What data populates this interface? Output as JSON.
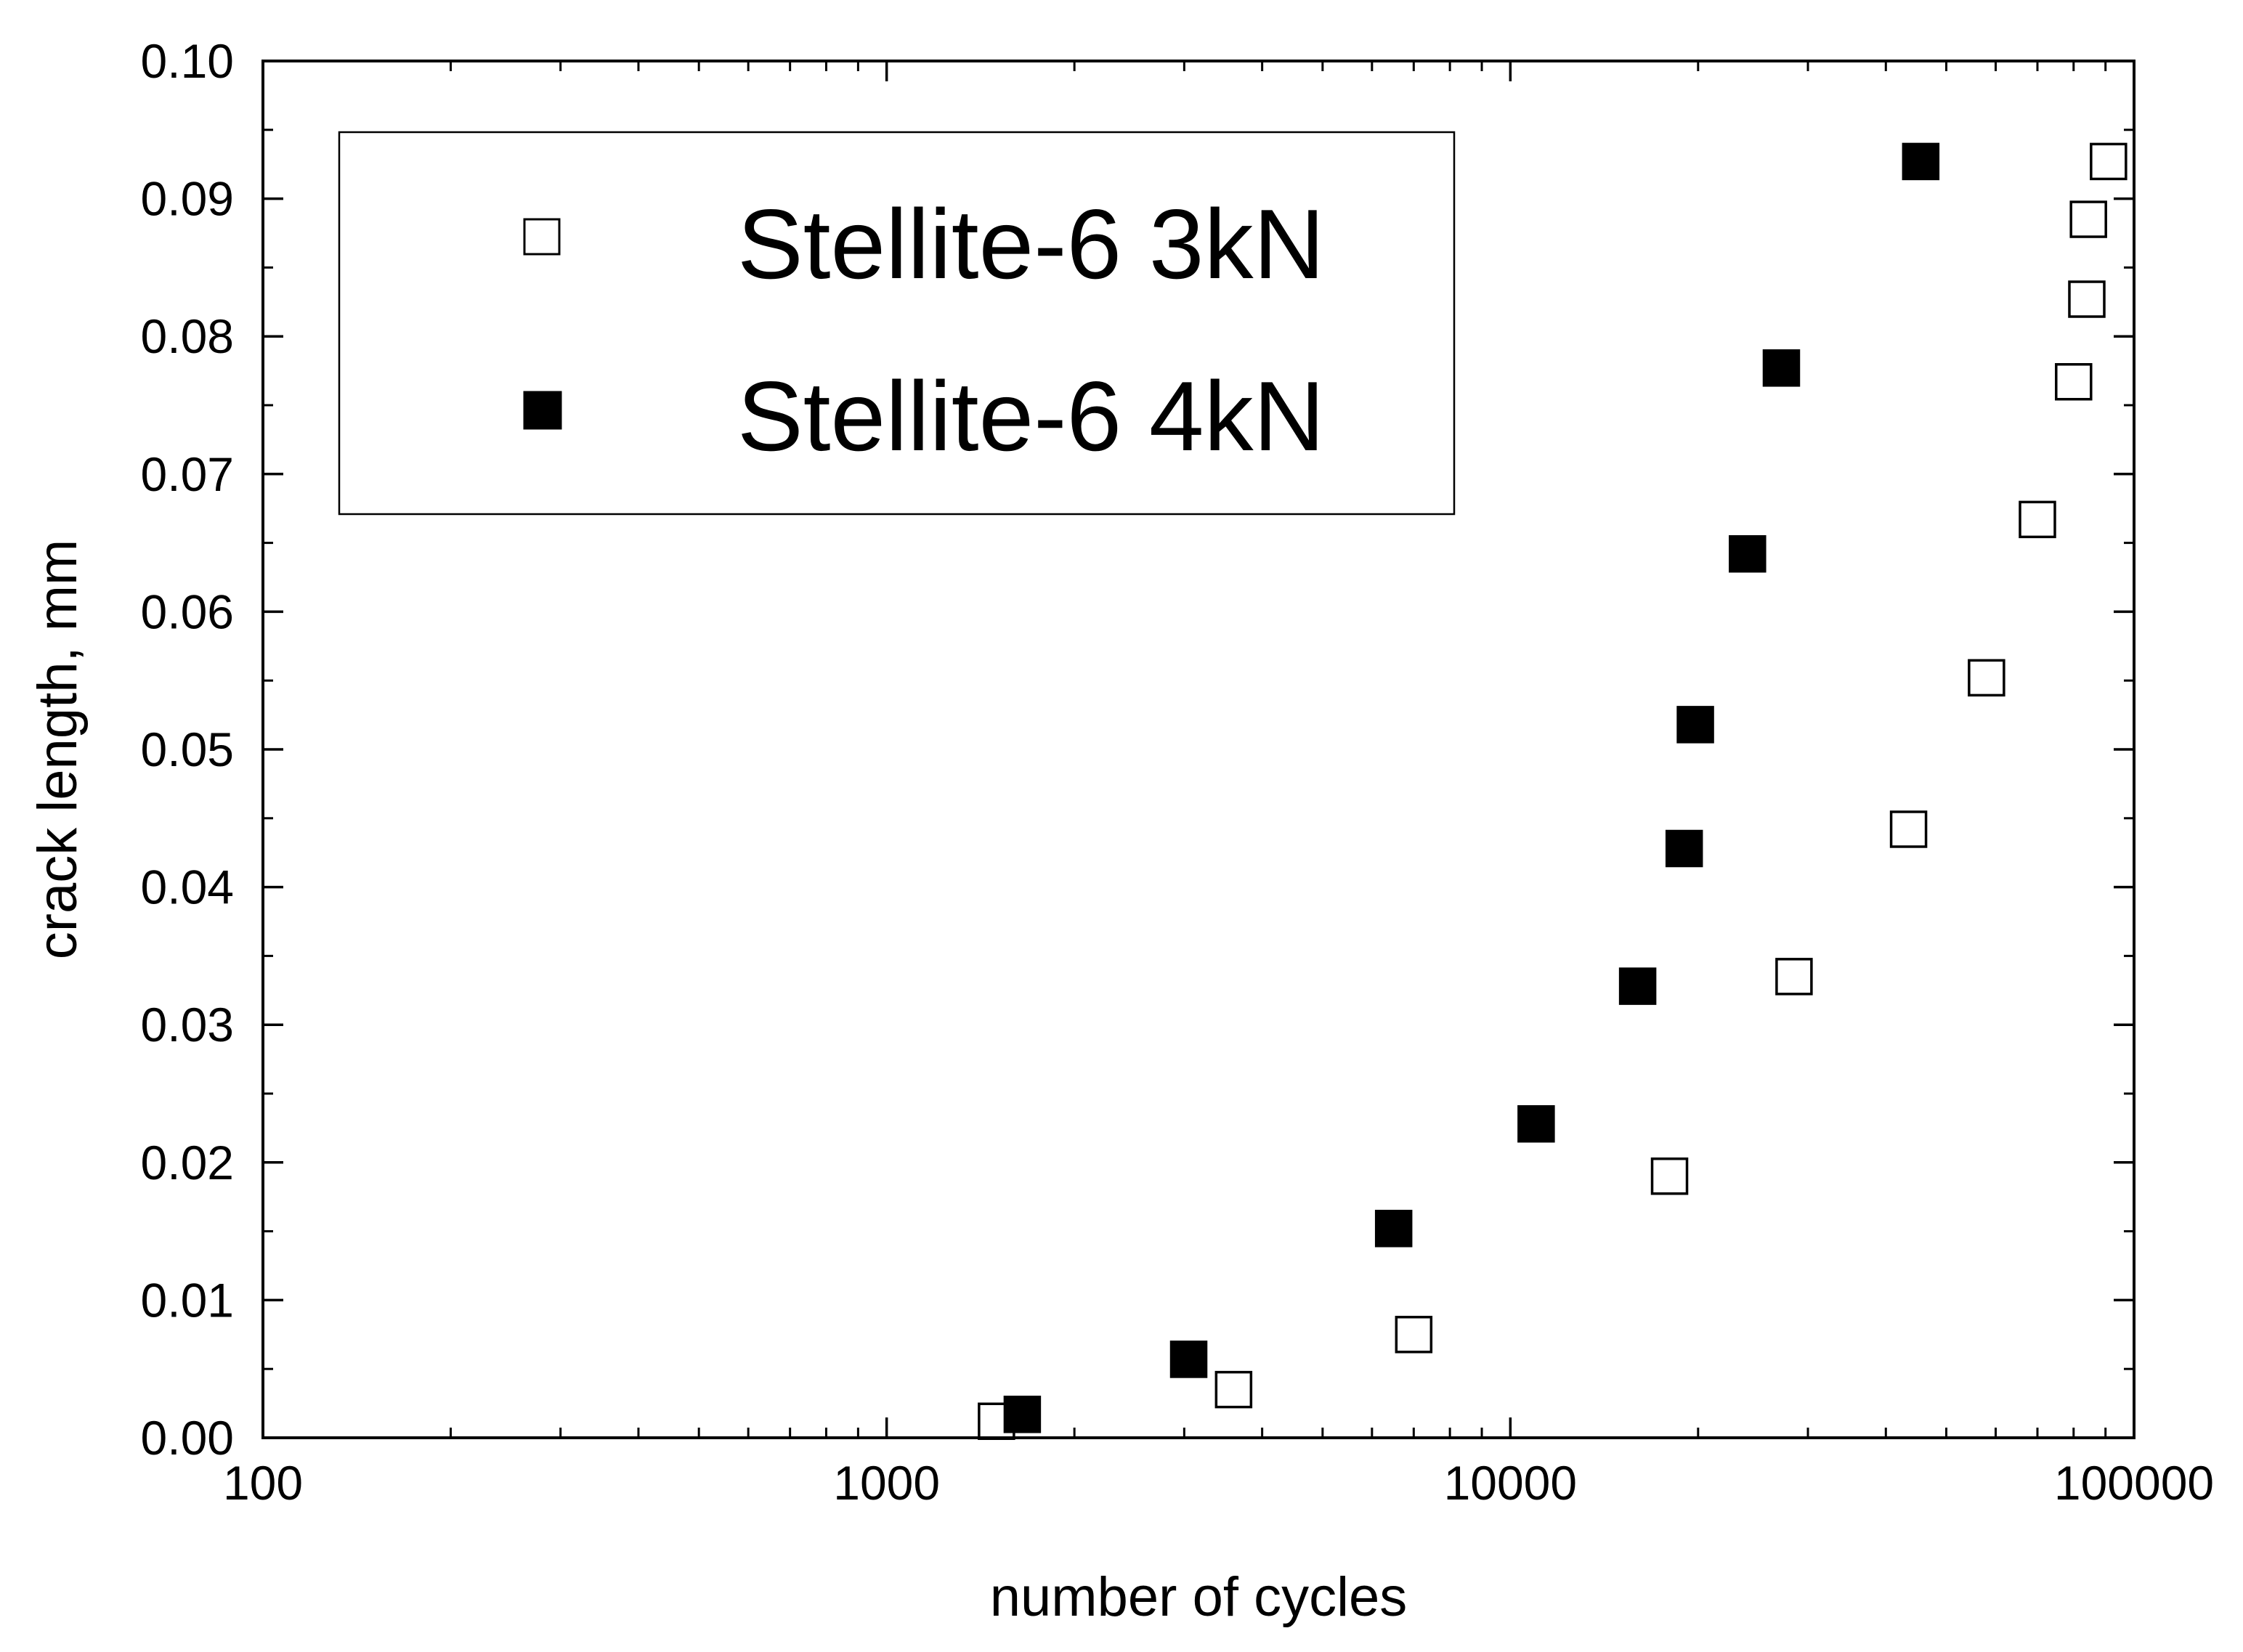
{
  "chart_data": {
    "type": "scatter",
    "title": "",
    "xlabel": "number of cycles",
    "ylabel": "crack length, mm",
    "xscale": "log",
    "xlim": [
      100,
      100000
    ],
    "ylim": [
      0.0,
      0.1
    ],
    "xticks": [
      100,
      1000,
      10000,
      100000
    ],
    "xtick_labels": [
      "100",
      "1000",
      "10000",
      "100000"
    ],
    "yticks": [
      0.0,
      0.01,
      0.02,
      0.03,
      0.04,
      0.05,
      0.06,
      0.07,
      0.08,
      0.09,
      0.1
    ],
    "ytick_labels": [
      "0.00",
      "0.01",
      "0.02",
      "0.03",
      "0.04",
      "0.05",
      "0.06",
      "0.07",
      "0.08",
      "0.09",
      "0.10"
    ],
    "grid": false,
    "legend_position": "top-left",
    "series": [
      {
        "name": "Stellite-6 3kN",
        "marker": "open-square",
        "color": "#000000",
        "x": [
          1500,
          3600,
          7000,
          18000,
          28500,
          43500,
          58000,
          70000,
          80000,
          84000,
          84500,
          91000
        ],
        "y": [
          0.0012,
          0.0035,
          0.0075,
          0.019,
          0.0335,
          0.0442,
          0.0552,
          0.0667,
          0.0767,
          0.0827,
          0.0885,
          0.0927
        ]
      },
      {
        "name": "Stellite-6 4kN",
        "marker": "filled-square",
        "color": "#000000",
        "x": [
          1650,
          3050,
          6500,
          11000,
          16000,
          19000,
          19800,
          24000,
          27200,
          45500
        ],
        "y": [
          0.0017,
          0.0057,
          0.0152,
          0.0228,
          0.0328,
          0.0428,
          0.0518,
          0.0642,
          0.0777,
          0.0927
        ]
      }
    ]
  }
}
